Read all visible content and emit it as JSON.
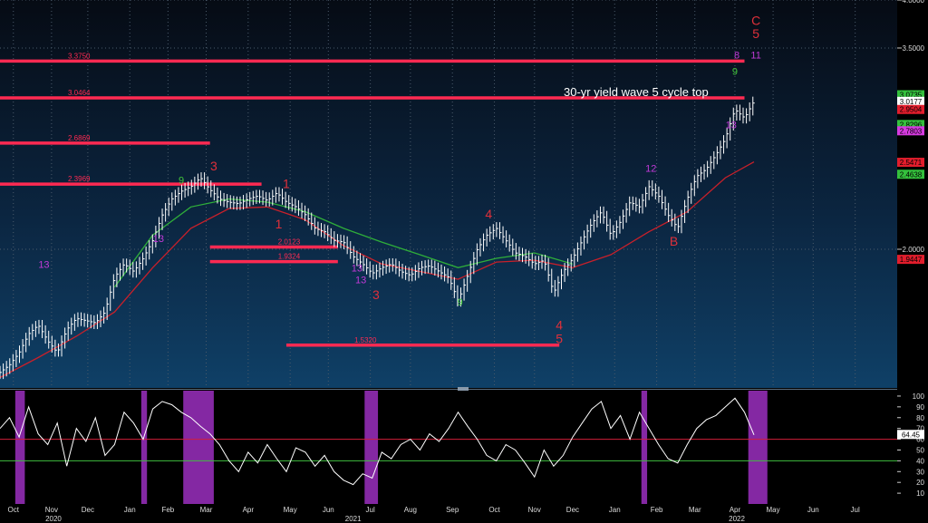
{
  "chart_data": {
    "type": "line",
    "title": "",
    "annotation": "30-yr yield wave 5 cycle top",
    "colors": {
      "price": "#ffffff",
      "ma_fast": "#c8202a",
      "ma_slow": "#2fae3a",
      "level_line": "#ff2a52",
      "oscillator": "#ffffff",
      "overbought_zone": "#9b2fc0",
      "overbought_line": "#d21e3a",
      "oversold_line": "#3fbf3f",
      "count_purple": "#c23ad8",
      "count_green": "#42c83a",
      "wave_label": "#e0303a",
      "background_top": "#0a1220",
      "background_bottom": "#0e3a60"
    },
    "price_axis": {
      "ticks": [
        {
          "label": "4.0000",
          "value": 4.0
        },
        {
          "label": "3.5000",
          "value": 3.5
        },
        {
          "label": "2.0000",
          "value": 2.0
        }
      ],
      "range": [
        1.36,
        4.0
      ],
      "scale": "log"
    },
    "current_tags": [
      {
        "label": "3.0735",
        "value": 3.0735,
        "color": "#34c03c"
      },
      {
        "label": "3.0177",
        "value": 3.0177,
        "color": "#ffffff"
      },
      {
        "label": "2.9504",
        "value": 2.9504,
        "color": "#e21d2c"
      },
      {
        "label": "2.8296",
        "value": 2.8296,
        "color": "#34c03c"
      },
      {
        "label": "2.7803",
        "value": 2.7803,
        "color": "#d63ae0"
      },
      {
        "label": "2.5471",
        "value": 2.5471,
        "color": "#e21d2c"
      },
      {
        "label": "2.4638",
        "value": 2.4638,
        "color": "#34c03c"
      },
      {
        "label": "1.9447",
        "value": 1.9447,
        "color": "#e21d2c"
      }
    ],
    "levels": [
      {
        "label": "3.3750",
        "value": 3.375,
        "from": 0,
        "to": 39
      },
      {
        "label": "3.0464",
        "value": 3.0464,
        "from": 0,
        "to": 39
      },
      {
        "label": "2.6869",
        "value": 2.6869,
        "from": 0,
        "to": 11
      },
      {
        "label": "2.3969",
        "value": 2.3969,
        "from": 0,
        "to": 13.7
      },
      {
        "label": "2.0123",
        "value": 2.0123,
        "from": 11,
        "to": 17.7
      },
      {
        "label": "1.9324",
        "value": 1.9324,
        "from": 11,
        "to": 17.7
      },
      {
        "label": "1.5320",
        "value": 1.532,
        "from": 15,
        "to": 29.3
      }
    ],
    "wave_labels": [
      {
        "text": "3",
        "x": 11.2,
        "y": 2.49
      },
      {
        "text": "1",
        "x": 15.0,
        "y": 2.37
      },
      {
        "text": "1",
        "x": 14.6,
        "y": 2.12
      },
      {
        "text": "3",
        "x": 19.7,
        "y": 1.74
      },
      {
        "text": "4",
        "x": 25.6,
        "y": 2.18
      },
      {
        "text": "4",
        "x": 29.3,
        "y": 1.6
      },
      {
        "text": "5",
        "x": 29.3,
        "y": 1.54
      },
      {
        "text": "B",
        "x": 35.3,
        "y": 2.02
      },
      {
        "text": "C",
        "x": 39.6,
        "y": 3.73
      },
      {
        "text": "5",
        "x": 39.6,
        "y": 3.6
      }
    ],
    "count_labels": [
      {
        "text": "13",
        "x": 2.3,
        "y": 1.9,
        "color": "purple"
      },
      {
        "text": "9",
        "x": 9.5,
        "y": 2.4,
        "color": "green"
      },
      {
        "text": "13",
        "x": 8.3,
        "y": 2.04,
        "color": "purple"
      },
      {
        "text": "13",
        "x": 18.7,
        "y": 1.88,
        "color": "purple"
      },
      {
        "text": "13",
        "x": 18.9,
        "y": 1.82,
        "color": "purple"
      },
      {
        "text": "9",
        "x": 24.1,
        "y": 1.71,
        "color": "green"
      },
      {
        "text": "12",
        "x": 34.1,
        "y": 2.48,
        "color": "purple"
      },
      {
        "text": "13",
        "x": 38.3,
        "y": 2.8,
        "color": "purple"
      },
      {
        "text": "9",
        "x": 38.5,
        "y": 3.25,
        "color": "green"
      },
      {
        "text": "8",
        "x": 38.6,
        "y": 3.4,
        "color": "purple"
      },
      {
        "text": "11",
        "x": 39.6,
        "y": 3.4,
        "color": "purple"
      }
    ],
    "time_axis": {
      "months": [
        {
          "label": "Oct",
          "x": 0.7
        },
        {
          "label": "Nov",
          "x": 2.7
        },
        {
          "label": "Dec",
          "x": 4.6
        },
        {
          "label": "Jan",
          "x": 6.8
        },
        {
          "label": "Feb",
          "x": 8.8
        },
        {
          "label": "Mar",
          "x": 10.8
        },
        {
          "label": "Apr",
          "x": 13.0
        },
        {
          "label": "May",
          "x": 15.2
        },
        {
          "label": "Jun",
          "x": 17.2
        },
        {
          "label": "Jul",
          "x": 19.4
        },
        {
          "label": "Aug",
          "x": 21.5
        },
        {
          "label": "Sep",
          "x": 23.7
        },
        {
          "label": "Oct",
          "x": 25.9
        },
        {
          "label": "Nov",
          "x": 28.0
        },
        {
          "label": "Dec",
          "x": 30.0
        },
        {
          "label": "Jan",
          "x": 32.2
        },
        {
          "label": "Feb",
          "x": 34.4
        },
        {
          "label": "Mar",
          "x": 36.4
        },
        {
          "label": "Apr",
          "x": 38.5
        },
        {
          "label": "May",
          "x": 40.5
        },
        {
          "label": "Jun",
          "x": 42.6
        },
        {
          "label": "Jul",
          "x": 44.8
        }
      ],
      "years": [
        {
          "label": "2020",
          "x": 2.8
        },
        {
          "label": "2021",
          "x": 18.5
        },
        {
          "label": "2022",
          "x": 38.6
        }
      ],
      "range": [
        0,
        47
      ],
      "x_unit": "weeks"
    },
    "price_series": {
      "x": [
        0,
        0.5,
        1,
        1.5,
        2,
        2.5,
        3,
        3.5,
        4,
        4.5,
        5,
        5.5,
        6,
        6.5,
        7,
        7.5,
        8,
        8.5,
        9,
        9.5,
        10,
        10.5,
        11,
        11.5,
        12,
        12.5,
        13,
        13.5,
        14,
        14.5,
        15,
        15.5,
        16,
        16.5,
        17,
        17.5,
        18,
        18.5,
        19,
        19.5,
        20,
        20.5,
        21,
        21.5,
        22,
        22.5,
        23,
        23.5,
        24,
        24.5,
        25,
        25.5,
        26,
        26.5,
        27,
        27.5,
        28,
        28.5,
        29,
        29.5,
        30,
        30.5,
        31,
        31.5,
        32,
        32.5,
        33,
        33.5,
        34,
        34.5,
        35,
        35.5,
        36,
        36.5,
        37,
        37.5,
        38,
        38.5,
        39,
        39.5
      ],
      "y": [
        1.42,
        1.45,
        1.5,
        1.58,
        1.62,
        1.55,
        1.5,
        1.6,
        1.65,
        1.64,
        1.63,
        1.68,
        1.85,
        1.92,
        1.88,
        1.95,
        2.05,
        2.2,
        2.3,
        2.35,
        2.38,
        2.44,
        2.36,
        2.3,
        2.28,
        2.27,
        2.3,
        2.32,
        2.29,
        2.34,
        2.28,
        2.25,
        2.2,
        2.12,
        2.1,
        2.05,
        2.04,
        1.96,
        1.92,
        1.87,
        1.9,
        1.92,
        1.88,
        1.86,
        1.9,
        1.91,
        1.88,
        1.85,
        1.73,
        1.86,
        2.0,
        2.08,
        2.12,
        2.05,
        1.98,
        1.96,
        1.92,
        1.94,
        1.77,
        1.88,
        1.95,
        2.05,
        2.15,
        2.22,
        2.08,
        2.16,
        2.28,
        2.25,
        2.38,
        2.32,
        2.2,
        2.12,
        2.3,
        2.45,
        2.5,
        2.6,
        2.72,
        2.95,
        2.88,
        3.02
      ]
    },
    "ma_fast": {
      "x": [
        0,
        2,
        4,
        6,
        8,
        10,
        12,
        14,
        16,
        18,
        20,
        22,
        24,
        26,
        28,
        30,
        32,
        34,
        36,
        38,
        39.5
      ],
      "y": [
        1.4,
        1.48,
        1.57,
        1.68,
        1.9,
        2.12,
        2.24,
        2.25,
        2.17,
        2.02,
        1.92,
        1.88,
        1.84,
        1.93,
        1.94,
        1.9,
        1.97,
        2.1,
        2.22,
        2.44,
        2.55
      ]
    },
    "ma_slow": {
      "x": [
        6,
        8,
        10,
        12,
        14,
        16,
        18,
        20,
        22,
        24,
        26,
        28,
        30
      ],
      "y": [
        1.8,
        2.08,
        2.25,
        2.3,
        2.28,
        2.22,
        2.12,
        2.04,
        1.97,
        1.9,
        1.95,
        1.98,
        1.92
      ]
    },
    "oscillator": {
      "axis_ticks": [
        100,
        90,
        80,
        70,
        60,
        50,
        40,
        30,
        20,
        10
      ],
      "range": [
        0,
        105
      ],
      "overbought": 60,
      "oversold": 40,
      "current": {
        "label": "64.45",
        "value": 64.45
      },
      "x": [
        0,
        0.5,
        1,
        1.5,
        2,
        2.5,
        3,
        3.5,
        4,
        4.5,
        5,
        5.5,
        6,
        6.5,
        7,
        7.5,
        8,
        8.5,
        9,
        9.5,
        10,
        10.5,
        11,
        11.5,
        12,
        12.5,
        13,
        13.5,
        14,
        14.5,
        15,
        15.5,
        16,
        16.5,
        17,
        17.5,
        18,
        18.5,
        19,
        19.5,
        20,
        20.5,
        21,
        21.5,
        22,
        22.5,
        23,
        23.5,
        24,
        24.5,
        25,
        25.5,
        26,
        26.5,
        27,
        27.5,
        28,
        28.5,
        29,
        29.5,
        30,
        30.5,
        31,
        31.5,
        32,
        32.5,
        33,
        33.5,
        34,
        34.5,
        35,
        35.5,
        36,
        36.5,
        37,
        37.5,
        38,
        38.5,
        39,
        39.5
      ],
      "y": [
        70,
        80,
        62,
        90,
        65,
        55,
        75,
        35,
        70,
        58,
        80,
        45,
        55,
        85,
        75,
        60,
        88,
        95,
        92,
        85,
        80,
        72,
        65,
        55,
        40,
        30,
        48,
        38,
        55,
        42,
        30,
        52,
        48,
        35,
        45,
        30,
        22,
        18,
        28,
        24,
        48,
        42,
        55,
        60,
        50,
        65,
        58,
        70,
        85,
        72,
        60,
        45,
        40,
        55,
        50,
        38,
        25,
        50,
        35,
        45,
        62,
        75,
        88,
        95,
        70,
        82,
        60,
        85,
        70,
        55,
        42,
        38,
        55,
        70,
        78,
        82,
        90,
        98,
        85,
        64
      ],
      "shaded_zones": [
        [
          0.8,
          1.3
        ],
        [
          7.4,
          7.7
        ],
        [
          9.6,
          11.2
        ],
        [
          19.1,
          19.8
        ],
        [
          33.6,
          33.9
        ],
        [
          39.2,
          40.2
        ]
      ]
    }
  }
}
